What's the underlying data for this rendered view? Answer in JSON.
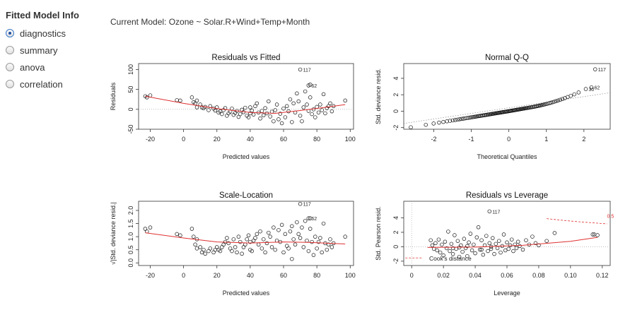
{
  "sidebar": {
    "title": "Fitted Model Info",
    "options": [
      {
        "label": "diagnostics",
        "checked": true
      },
      {
        "label": "summary",
        "checked": false
      },
      {
        "label": "anova",
        "checked": false
      },
      {
        "label": "correlation",
        "checked": false
      }
    ]
  },
  "main": {
    "model_label": "Current Model: Ozone ~ Solar.R+Wind+Temp+Month"
  },
  "chart_data": [
    {
      "type": "scatter",
      "title": "Residuals vs Fitted",
      "xlabel": "Predicted values",
      "ylabel": "Residuals",
      "xlim": [
        -27,
        102
      ],
      "ylim": [
        -50,
        115
      ],
      "xticks": [
        -20,
        0,
        20,
        40,
        60,
        80,
        100
      ],
      "yticks": [
        -50,
        0,
        50,
        100
      ],
      "ref_line": 0,
      "annotations": [
        {
          "text": "117",
          "x": 70,
          "y": 100
        },
        {
          "text": "62",
          "x": 75,
          "y": 60
        }
      ],
      "points": [
        [
          -23,
          33
        ],
        [
          -22,
          30
        ],
        [
          -20,
          35
        ],
        [
          -4,
          23
        ],
        [
          -2,
          22
        ],
        [
          5,
          30
        ],
        [
          6,
          18
        ],
        [
          7,
          15
        ],
        [
          8,
          22
        ],
        [
          8,
          5
        ],
        [
          10,
          12
        ],
        [
          11,
          5
        ],
        [
          12,
          3
        ],
        [
          13,
          6
        ],
        [
          15,
          -2
        ],
        [
          16,
          8
        ],
        [
          18,
          2
        ],
        [
          19,
          -3
        ],
        [
          20,
          5
        ],
        [
          21,
          -8
        ],
        [
          22,
          -5
        ],
        [
          23,
          -12
        ],
        [
          24,
          -2
        ],
        [
          25,
          3
        ],
        [
          26,
          -16
        ],
        [
          27,
          -10
        ],
        [
          28,
          -6
        ],
        [
          29,
          2
        ],
        [
          30,
          -14
        ],
        [
          31,
          -9
        ],
        [
          32,
          -4
        ],
        [
          33,
          -19
        ],
        [
          34,
          -12
        ],
        [
          35,
          -1
        ],
        [
          36,
          -7
        ],
        [
          37,
          4
        ],
        [
          38,
          -16
        ],
        [
          39,
          -20
        ],
        [
          40,
          -10
        ],
        [
          40,
          5
        ],
        [
          41,
          -3
        ],
        [
          42,
          -13
        ],
        [
          43,
          8
        ],
        [
          44,
          15
        ],
        [
          45,
          -8
        ],
        [
          46,
          -23
        ],
        [
          47,
          -4
        ],
        [
          48,
          -15
        ],
        [
          49,
          3
        ],
        [
          50,
          -10
        ],
        [
          51,
          20
        ],
        [
          52,
          -18
        ],
        [
          53,
          -6
        ],
        [
          54,
          -30
        ],
        [
          55,
          -2
        ],
        [
          56,
          12
        ],
        [
          57,
          -25
        ],
        [
          58,
          -11
        ],
        [
          59,
          -35
        ],
        [
          60,
          2
        ],
        [
          61,
          -20
        ],
        [
          62,
          8
        ],
        [
          63,
          -5
        ],
        [
          64,
          25
        ],
        [
          65,
          -32
        ],
        [
          66,
          15
        ],
        [
          67,
          -8
        ],
        [
          68,
          40
        ],
        [
          69,
          20
        ],
        [
          70,
          -16
        ],
        [
          71,
          -30
        ],
        [
          72,
          5
        ],
        [
          73,
          45
        ],
        [
          74,
          12
        ],
        [
          75,
          -4
        ],
        [
          76,
          30
        ],
        [
          77,
          -12
        ],
        [
          78,
          0
        ],
        [
          79,
          -20
        ],
        [
          80,
          6
        ],
        [
          81,
          -8
        ],
        [
          82,
          12
        ],
        [
          83,
          -2
        ],
        [
          84,
          38
        ],
        [
          85,
          -10
        ],
        [
          86,
          3
        ],
        [
          87,
          8
        ],
        [
          88,
          15
        ],
        [
          89,
          -5
        ],
        [
          90,
          8
        ],
        [
          97,
          22
        ],
        [
          70,
          100
        ],
        [
          75,
          60
        ],
        [
          76,
          62
        ]
      ],
      "smooth": [
        [
          -23,
          33
        ],
        [
          0,
          15
        ],
        [
          20,
          2
        ],
        [
          40,
          -8
        ],
        [
          55,
          -10
        ],
        [
          70,
          -3
        ],
        [
          85,
          5
        ],
        [
          97,
          12
        ]
      ]
    },
    {
      "type": "scatter",
      "title": "Normal Q-Q",
      "xlabel": "Theoretical Quantiles",
      "ylabel": "Std. deviance resid.",
      "xlim": [
        -2.8,
        2.7
      ],
      "ylim": [
        -2.2,
        5.8
      ],
      "xticks": [
        -2,
        -1,
        0,
        1,
        2
      ],
      "yticks": [
        -2,
        0,
        2,
        4
      ],
      "ref_line_dotted": [
        [
          -2.8,
          -1.5
        ],
        [
          2.7,
          2.25
        ]
      ],
      "annotations": [
        {
          "text": "117",
          "x": 2.3,
          "y": 5.1
        },
        {
          "text": "30",
          "x": 2.05,
          "y": 2.7
        },
        {
          "text": "62",
          "x": 2.2,
          "y": 2.9
        }
      ]
    },
    {
      "type": "scatter",
      "title": "Scale-Location",
      "xlabel": "Predicted values",
      "ylabel": "√|Std. deviance resid.|",
      "xlim": [
        -27,
        102
      ],
      "ylim": [
        -0.1,
        2.35
      ],
      "xticks": [
        -20,
        0,
        20,
        40,
        60,
        80,
        100
      ],
      "yticks": [
        0.0,
        0.5,
        1.0,
        1.5,
        2.0
      ],
      "annotations": [
        {
          "text": "117",
          "x": 70,
          "y": 2.25
        },
        {
          "text": "62",
          "x": 75,
          "y": 1.7
        }
      ],
      "points": [
        [
          -23,
          1.3
        ],
        [
          -22,
          1.2
        ],
        [
          -20,
          1.35
        ],
        [
          -4,
          1.1
        ],
        [
          -2,
          1.05
        ],
        [
          5,
          1.3
        ],
        [
          6,
          1.0
        ],
        [
          7,
          0.7
        ],
        [
          8,
          0.9
        ],
        [
          8,
          0.55
        ],
        [
          10,
          0.6
        ],
        [
          11,
          0.4
        ],
        [
          12,
          0.5
        ],
        [
          13,
          0.35
        ],
        [
          15,
          0.45
        ],
        [
          16,
          0.55
        ],
        [
          18,
          0.4
        ],
        [
          19,
          0.5
        ],
        [
          20,
          0.6
        ],
        [
          21,
          0.5
        ],
        [
          22,
          0.45
        ],
        [
          23,
          0.6
        ],
        [
          24,
          0.7
        ],
        [
          25,
          0.8
        ],
        [
          26,
          0.95
        ],
        [
          27,
          0.75
        ],
        [
          28,
          0.55
        ],
        [
          29,
          0.45
        ],
        [
          30,
          0.9
        ],
        [
          31,
          0.6
        ],
        [
          32,
          0.4
        ],
        [
          33,
          1.0
        ],
        [
          34,
          0.8
        ],
        [
          35,
          0.35
        ],
        [
          36,
          0.6
        ],
        [
          37,
          0.7
        ],
        [
          38,
          0.9
        ],
        [
          39,
          1.05
        ],
        [
          40,
          0.8
        ],
        [
          40,
          0.5
        ],
        [
          41,
          0.45
        ],
        [
          42,
          0.85
        ],
        [
          43,
          0.95
        ],
        [
          44,
          1.1
        ],
        [
          45,
          0.7
        ],
        [
          46,
          1.2
        ],
        [
          47,
          0.55
        ],
        [
          48,
          0.9
        ],
        [
          49,
          0.4
        ],
        [
          50,
          0.75
        ],
        [
          51,
          1.15
        ],
        [
          52,
          1.0
        ],
        [
          53,
          0.6
        ],
        [
          54,
          1.35
        ],
        [
          55,
          0.5
        ],
        [
          56,
          0.85
        ],
        [
          57,
          1.25
        ],
        [
          58,
          0.8
        ],
        [
          59,
          1.45
        ],
        [
          60,
          0.4
        ],
        [
          61,
          1.1
        ],
        [
          62,
          0.65
        ],
        [
          63,
          0.55
        ],
        [
          64,
          1.2
        ],
        [
          65,
          1.4
        ],
        [
          66,
          0.9
        ],
        [
          67,
          0.7
        ],
        [
          68,
          1.55
        ],
        [
          69,
          1.1
        ],
        [
          70,
          0.95
        ],
        [
          71,
          1.35
        ],
        [
          72,
          0.6
        ],
        [
          73,
          1.6
        ],
        [
          74,
          0.85
        ],
        [
          75,
          0.45
        ],
        [
          76,
          1.3
        ],
        [
          77,
          0.8
        ],
        [
          78,
          0.3
        ],
        [
          79,
          1.0
        ],
        [
          80,
          0.55
        ],
        [
          81,
          0.8
        ],
        [
          82,
          0.95
        ],
        [
          83,
          0.4
        ],
        [
          84,
          1.5
        ],
        [
          85,
          0.75
        ],
        [
          86,
          0.5
        ],
        [
          87,
          0.7
        ],
        [
          88,
          0.9
        ],
        [
          89,
          0.6
        ],
        [
          90,
          0.75
        ],
        [
          97,
          1.0
        ],
        [
          70,
          2.25
        ],
        [
          75,
          1.7
        ],
        [
          76,
          1.7
        ],
        [
          65,
          0.15
        ]
      ],
      "smooth": [
        [
          -23,
          1.15
        ],
        [
          0,
          0.95
        ],
        [
          20,
          0.8
        ],
        [
          40,
          0.76
        ],
        [
          60,
          0.8
        ],
        [
          75,
          0.78
        ],
        [
          97,
          0.72
        ]
      ]
    },
    {
      "type": "scatter",
      "title": "Residuals vs Leverage",
      "xlabel": "Leverage",
      "ylabel": "Std. Pearson resid.",
      "xlim": [
        -0.005,
        0.125
      ],
      "ylim": [
        -2.6,
        6.3
      ],
      "xticks": [
        0.0,
        0.02,
        0.04,
        0.06,
        0.08,
        0.1,
        0.12
      ],
      "yticks": [
        -2,
        0,
        2,
        4
      ],
      "ref_line": 0,
      "annotations": [
        {
          "text": "117",
          "x": 0.049,
          "y": 4.9
        },
        {
          "text": "0.5",
          "x": 0.123,
          "y": 4.3
        },
        {
          "text": "Cook's distance",
          "x": 0.011,
          "y": -1.6
        }
      ],
      "points": [
        [
          0.012,
          0.9
        ],
        [
          0.013,
          0.2
        ],
        [
          0.014,
          -0.3
        ],
        [
          0.015,
          0.5
        ],
        [
          0.016,
          -0.5
        ],
        [
          0.017,
          1.0
        ],
        [
          0.018,
          -0.8
        ],
        [
          0.019,
          0.3
        ],
        [
          0.02,
          -1.2
        ],
        [
          0.021,
          0.7
        ],
        [
          0.022,
          -0.2
        ],
        [
          0.023,
          2.1
        ],
        [
          0.024,
          -0.6
        ],
        [
          0.025,
          0.4
        ],
        [
          0.026,
          -1.0
        ],
        [
          0.027,
          1.6
        ],
        [
          0.028,
          -0.3
        ],
        [
          0.029,
          0.8
        ],
        [
          0.03,
          -1.4
        ],
        [
          0.031,
          0.2
        ],
        [
          0.032,
          -0.7
        ],
        [
          0.033,
          1.1
        ],
        [
          0.034,
          -0.2
        ],
        [
          0.035,
          -1.3
        ],
        [
          0.036,
          0.6
        ],
        [
          0.037,
          1.8
        ],
        [
          0.038,
          -0.5
        ],
        [
          0.039,
          0.3
        ],
        [
          0.04,
          -0.9
        ],
        [
          0.041,
          1.3
        ],
        [
          0.042,
          2.7
        ],
        [
          0.043,
          -0.4
        ],
        [
          0.044,
          0.9
        ],
        [
          0.045,
          -1.1
        ],
        [
          0.046,
          0.2
        ],
        [
          0.047,
          1.5
        ],
        [
          0.048,
          -0.6
        ],
        [
          0.049,
          0.5
        ],
        [
          0.05,
          -0.3
        ],
        [
          0.051,
          1.2
        ],
        [
          0.052,
          -1.0
        ],
        [
          0.053,
          0.4
        ],
        [
          0.054,
          -0.2
        ],
        [
          0.055,
          0.8
        ],
        [
          0.056,
          -0.8
        ],
        [
          0.057,
          0.1
        ],
        [
          0.058,
          1.7
        ],
        [
          0.059,
          -0.5
        ],
        [
          0.06,
          0.6
        ],
        [
          0.061,
          -0.3
        ],
        [
          0.062,
          0.2
        ],
        [
          0.063,
          1.0
        ],
        [
          0.064,
          -0.6
        ],
        [
          0.065,
          0.3
        ],
        [
          0.066,
          -0.2
        ],
        [
          0.067,
          0.7
        ],
        [
          0.068,
          0.1
        ],
        [
          0.07,
          -0.4
        ],
        [
          0.072,
          0.9
        ],
        [
          0.074,
          0.3
        ],
        [
          0.076,
          1.4
        ],
        [
          0.078,
          0.5
        ],
        [
          0.08,
          0.2
        ],
        [
          0.085,
          0.8
        ],
        [
          0.09,
          1.9
        ],
        [
          0.03,
          -0.1
        ],
        [
          0.026,
          -0.2
        ],
        [
          0.044,
          -0.4
        ],
        [
          0.035,
          0.1
        ],
        [
          0.05,
          0.0
        ],
        [
          0.114,
          1.7
        ],
        [
          0.115,
          1.7
        ],
        [
          0.117,
          1.6
        ],
        [
          0.049,
          4.9
        ]
      ],
      "smooth": [
        [
          0.01,
          -0.1
        ],
        [
          0.04,
          -0.05
        ],
        [
          0.07,
          0.2
        ],
        [
          0.1,
          0.75
        ],
        [
          0.117,
          1.3
        ]
      ]
    }
  ]
}
